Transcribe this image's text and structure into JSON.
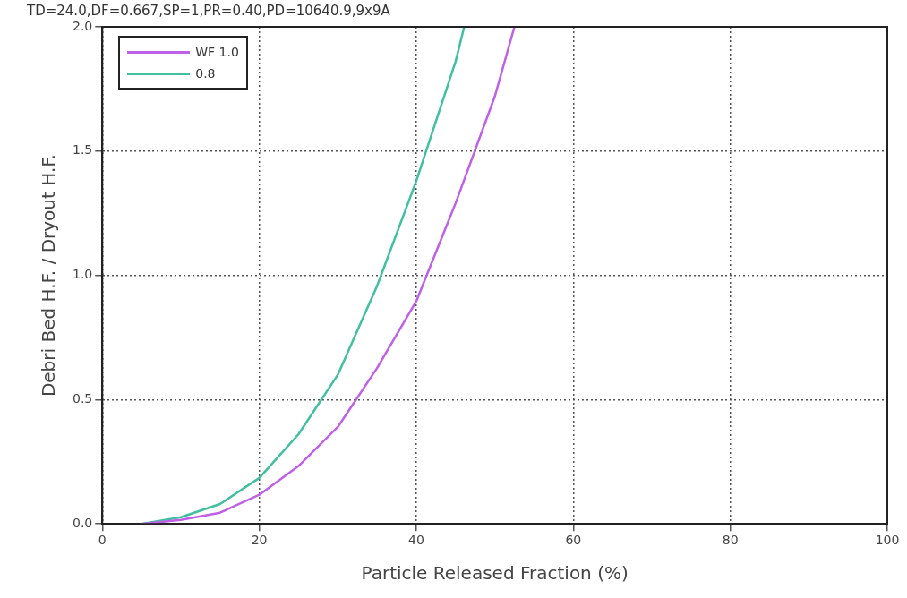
{
  "chart_data": {
    "type": "line",
    "title": "TD=24.0,DF=0.667,SP=1,PR=0.40,PD=10640.9,9x9A",
    "xlabel": "Particle Released Fraction (%)",
    "ylabel": "Debri Bed H.F. / Dryout H.F.",
    "series": [
      {
        "name": "WF 1.0",
        "color": "#c060e8",
        "x": [
          5,
          10,
          15,
          20,
          25,
          30,
          35,
          40,
          45,
          50,
          52.5
        ],
        "values": [
          0,
          0.016,
          0.045,
          0.117,
          0.233,
          0.39,
          0.627,
          0.896,
          1.29,
          1.72,
          2.0
        ]
      },
      {
        "name": "0.8",
        "color": "#40c0a0",
        "x": [
          5,
          10,
          15,
          20,
          25,
          30,
          35,
          40,
          45,
          46.1
        ],
        "values": [
          0,
          0.027,
          0.08,
          0.185,
          0.361,
          0.6,
          0.957,
          1.38,
          1.86,
          2.0
        ]
      }
    ],
    "xlim": [
      0,
      100
    ],
    "xticks": [
      0,
      20,
      40,
      60,
      80,
      100
    ],
    "ylim": [
      0,
      2
    ],
    "yticks": [
      {
        "value": 0,
        "label": "0.0"
      },
      {
        "value": 0.5,
        "label": "0.5"
      },
      {
        "value": 1,
        "label": "1.0"
      },
      {
        "value": 1.5,
        "label": "1.5"
      },
      {
        "value": 2,
        "label": "2.0"
      }
    ],
    "grid": true,
    "legend": "top left",
    "marker": "none",
    "line_style": "solid"
  }
}
